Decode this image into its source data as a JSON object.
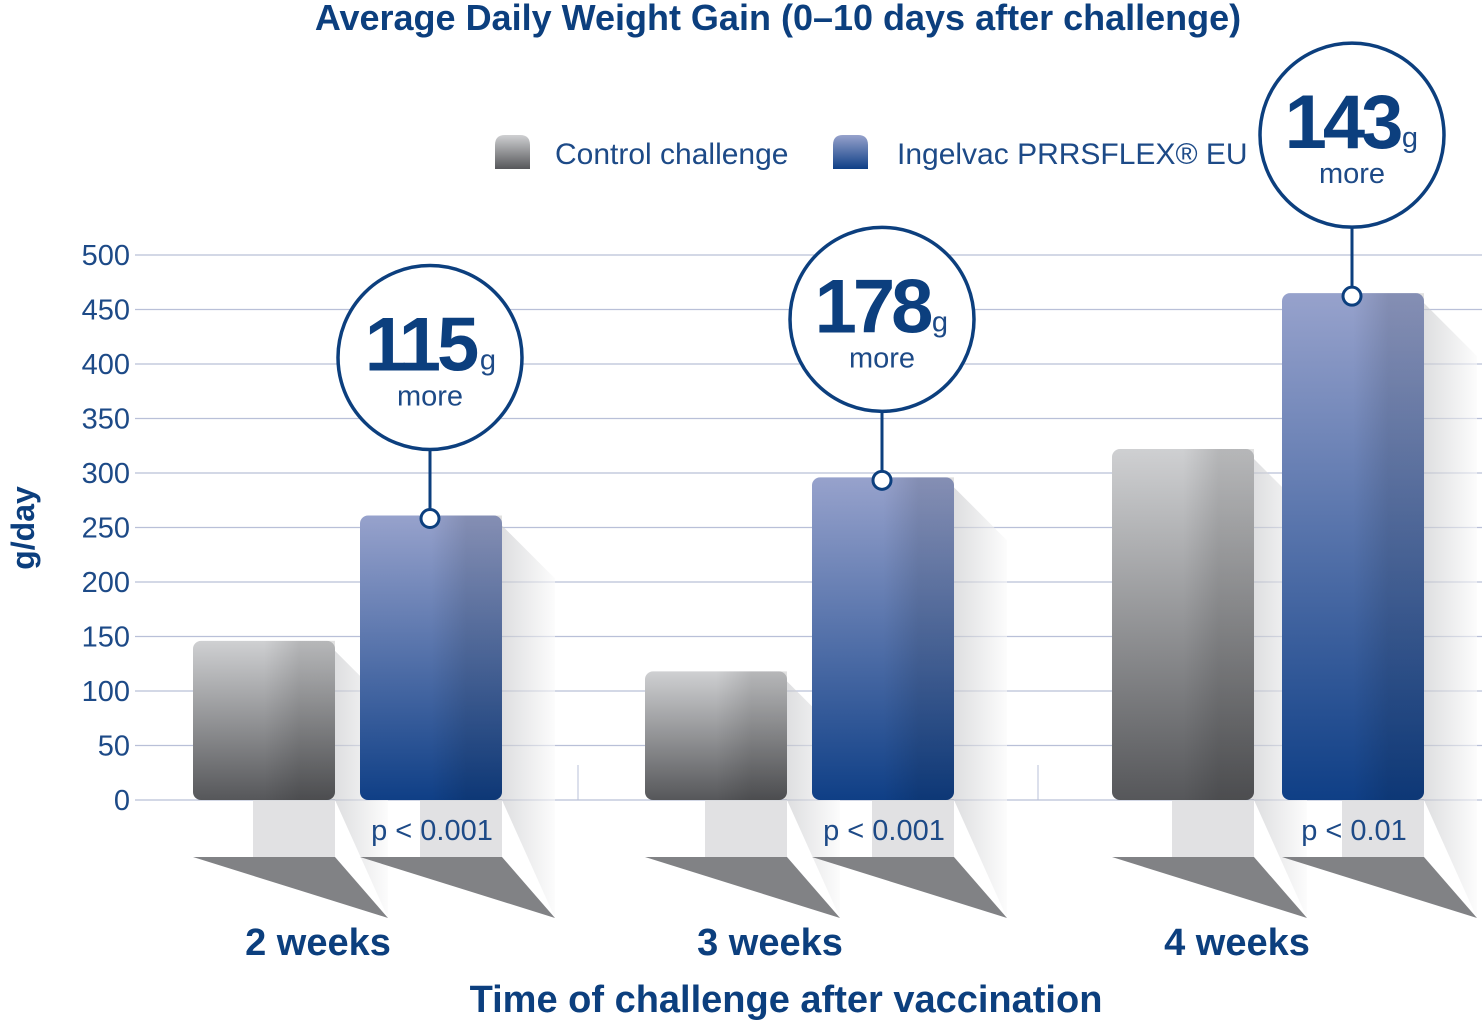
{
  "chart_data": {
    "type": "bar",
    "title": "Average Daily Weight Gain (0–10 days after challenge)",
    "xlabel": "Time of challenge after vaccination",
    "ylabel": "g/day",
    "ylim": [
      0,
      500
    ],
    "yticks": [
      "0",
      "50",
      "100",
      "150",
      "200",
      "250",
      "300",
      "350",
      "400",
      "450",
      "500"
    ],
    "grid": true,
    "legend_position": "top",
    "categories": [
      "2 weeks",
      "3 weeks",
      "4 weeks"
    ],
    "series": [
      {
        "name": "Control challenge",
        "values": [
          146,
          118,
          322
        ],
        "color": "#8a8c90"
      },
      {
        "name": "Ingelvac PRRSFLEX® EU",
        "values": [
          261,
          296,
          465
        ],
        "color": "#24508f"
      }
    ],
    "annotations": [
      {
        "category": "2 weeks",
        "difference": "115",
        "unit": "g",
        "text": "more",
        "p_value": "p < 0.001"
      },
      {
        "category": "3 weeks",
        "difference": "178",
        "unit": "g",
        "text": "more",
        "p_value": "p < 0.001"
      },
      {
        "category": "4 weeks",
        "difference": "143",
        "unit": "g",
        "text": "more",
        "p_value": "p < 0.01"
      }
    ],
    "colors": {
      "text": "#0c3f7e",
      "grid": "#b9c0d8"
    }
  }
}
